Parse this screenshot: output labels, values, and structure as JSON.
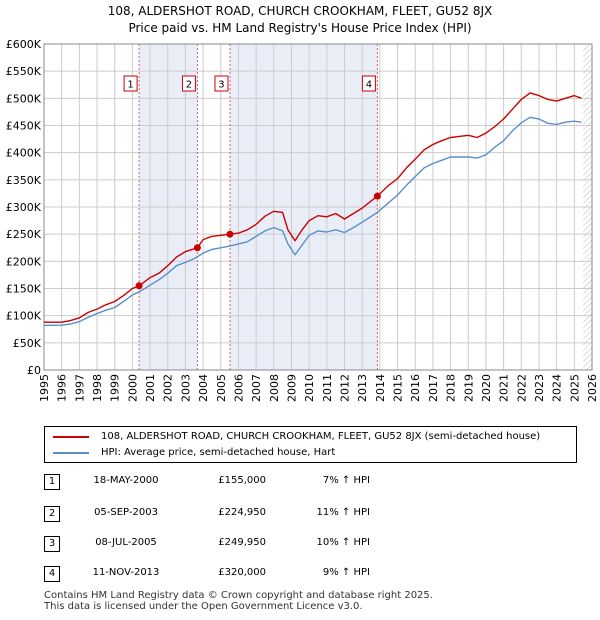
{
  "chart_data": {
    "type": "line",
    "title": "108, ALDERSHOT ROAD, CHURCH CROOKHAM, FLEET, GU52 8JX",
    "subtitle": "Price paid vs. HM Land Registry's House Price Index (HPI)",
    "xlim": [
      1995,
      2026
    ],
    "ylim": [
      0,
      600000
    ],
    "x_ticks": [
      "1995",
      "1996",
      "1997",
      "1998",
      "1999",
      "2000",
      "2001",
      "2002",
      "2003",
      "2004",
      "2005",
      "2006",
      "2007",
      "2008",
      "2009",
      "2010",
      "2011",
      "2012",
      "2013",
      "2014",
      "2015",
      "2016",
      "2017",
      "2018",
      "2019",
      "2020",
      "2021",
      "2022",
      "2023",
      "2024",
      "2025",
      "2026"
    ],
    "y_ticks": [
      {
        "label": "£0",
        "value": 0
      },
      {
        "label": "£50K",
        "value": 50000
      },
      {
        "label": "£100K",
        "value": 100000
      },
      {
        "label": "£150K",
        "value": 150000
      },
      {
        "label": "£200K",
        "value": 200000
      },
      {
        "label": "£250K",
        "value": 250000
      },
      {
        "label": "£300K",
        "value": 300000
      },
      {
        "label": "£350K",
        "value": 350000
      },
      {
        "label": "£400K",
        "value": 400000
      },
      {
        "label": "£450K",
        "value": 450000
      },
      {
        "label": "£500K",
        "value": 500000
      },
      {
        "label": "£550K",
        "value": 550000
      },
      {
        "label": "£600K",
        "value": 600000
      }
    ],
    "grid": true,
    "series": [
      {
        "name": "108, ALDERSHOT ROAD, CHURCH CROOKHAM, FLEET, GU52 8JX (semi-detached house)",
        "color": "#cc0000",
        "points": [
          [
            1995.0,
            88000
          ],
          [
            1996.0,
            88000
          ],
          [
            1996.5,
            91000
          ],
          [
            1997.0,
            96000
          ],
          [
            1997.5,
            106000
          ],
          [
            1998.0,
            112000
          ],
          [
            1998.5,
            120000
          ],
          [
            1999.0,
            126000
          ],
          [
            1999.5,
            137000
          ],
          [
            2000.0,
            150000
          ],
          [
            2000.38,
            155000
          ],
          [
            2001.0,
            170000
          ],
          [
            2001.5,
            178000
          ],
          [
            2002.0,
            192000
          ],
          [
            2002.5,
            208000
          ],
          [
            2003.0,
            218000
          ],
          [
            2003.68,
            224950
          ],
          [
            2004.0,
            240000
          ],
          [
            2004.5,
            246000
          ],
          [
            2005.0,
            248000
          ],
          [
            2005.52,
            249950
          ],
          [
            2006.0,
            252000
          ],
          [
            2006.5,
            258000
          ],
          [
            2007.0,
            268000
          ],
          [
            2007.5,
            283000
          ],
          [
            2008.0,
            292000
          ],
          [
            2008.5,
            290000
          ],
          [
            2008.8,
            258000
          ],
          [
            2009.2,
            238000
          ],
          [
            2009.6,
            258000
          ],
          [
            2010.0,
            275000
          ],
          [
            2010.5,
            284000
          ],
          [
            2011.0,
            282000
          ],
          [
            2011.5,
            288000
          ],
          [
            2012.0,
            278000
          ],
          [
            2012.5,
            288000
          ],
          [
            2013.0,
            298000
          ],
          [
            2013.86,
            320000
          ],
          [
            2014.5,
            340000
          ],
          [
            2015.0,
            352000
          ],
          [
            2015.5,
            372000
          ],
          [
            2016.0,
            388000
          ],
          [
            2016.5,
            405000
          ],
          [
            2017.0,
            415000
          ],
          [
            2017.5,
            422000
          ],
          [
            2018.0,
            428000
          ],
          [
            2018.5,
            430000
          ],
          [
            2019.0,
            432000
          ],
          [
            2019.5,
            428000
          ],
          [
            2020.0,
            436000
          ],
          [
            2020.5,
            448000
          ],
          [
            2021.0,
            462000
          ],
          [
            2021.5,
            480000
          ],
          [
            2022.0,
            498000
          ],
          [
            2022.5,
            510000
          ],
          [
            2023.0,
            505000
          ],
          [
            2023.5,
            498000
          ],
          [
            2024.0,
            495000
          ],
          [
            2024.5,
            500000
          ],
          [
            2025.0,
            505000
          ],
          [
            2025.4,
            500000
          ]
        ]
      },
      {
        "name": "HPI: Average price, semi-detached house, Hart",
        "color": "#5b8fc9",
        "points": [
          [
            1995.0,
            82000
          ],
          [
            1996.0,
            82500
          ],
          [
            1996.5,
            84500
          ],
          [
            1997.0,
            89000
          ],
          [
            1997.5,
            97000
          ],
          [
            1998.0,
            104000
          ],
          [
            1998.5,
            110000
          ],
          [
            1999.0,
            115000
          ],
          [
            1999.5,
            126000
          ],
          [
            2000.0,
            138000
          ],
          [
            2000.5,
            146000
          ],
          [
            2001.0,
            156000
          ],
          [
            2001.5,
            166000
          ],
          [
            2002.0,
            178000
          ],
          [
            2002.5,
            192000
          ],
          [
            2003.0,
            198000
          ],
          [
            2003.5,
            205000
          ],
          [
            2004.0,
            215000
          ],
          [
            2004.5,
            222000
          ],
          [
            2005.0,
            225000
          ],
          [
            2005.5,
            228000
          ],
          [
            2006.0,
            232000
          ],
          [
            2006.5,
            236000
          ],
          [
            2007.0,
            246000
          ],
          [
            2007.5,
            256000
          ],
          [
            2008.0,
            262000
          ],
          [
            2008.5,
            256000
          ],
          [
            2008.8,
            232000
          ],
          [
            2009.2,
            212000
          ],
          [
            2009.6,
            230000
          ],
          [
            2010.0,
            248000
          ],
          [
            2010.5,
            256000
          ],
          [
            2011.0,
            254000
          ],
          [
            2011.5,
            258000
          ],
          [
            2012.0,
            253000
          ],
          [
            2012.5,
            262000
          ],
          [
            2013.0,
            272000
          ],
          [
            2013.86,
            290000
          ],
          [
            2014.5,
            308000
          ],
          [
            2015.0,
            322000
          ],
          [
            2015.5,
            340000
          ],
          [
            2016.0,
            356000
          ],
          [
            2016.5,
            372000
          ],
          [
            2017.0,
            380000
          ],
          [
            2017.5,
            386000
          ],
          [
            2018.0,
            392000
          ],
          [
            2018.5,
            392000
          ],
          [
            2019.0,
            392000
          ],
          [
            2019.5,
            390000
          ],
          [
            2020.0,
            396000
          ],
          [
            2020.5,
            410000
          ],
          [
            2021.0,
            422000
          ],
          [
            2021.5,
            440000
          ],
          [
            2022.0,
            455000
          ],
          [
            2022.5,
            465000
          ],
          [
            2023.0,
            462000
          ],
          [
            2023.5,
            454000
          ],
          [
            2024.0,
            452000
          ],
          [
            2024.5,
            456000
          ],
          [
            2025.0,
            458000
          ],
          [
            2025.4,
            456000
          ]
        ]
      }
    ],
    "sales": [
      {
        "label": "1",
        "date": "18-MAY-2000",
        "price": "£155,000",
        "hpi": "7% ↑ HPI",
        "x": 2000.38,
        "y": 155000
      },
      {
        "label": "2",
        "date": "05-SEP-2003",
        "price": "£224,950",
        "hpi": "11% ↑ HPI",
        "x": 2003.68,
        "y": 224950
      },
      {
        "label": "3",
        "date": "08-JUL-2005",
        "price": "£249,950",
        "hpi": "10% ↑ HPI",
        "x": 2005.52,
        "y": 249950
      },
      {
        "label": "4",
        "date": "11-NOV-2013",
        "price": "£320,000",
        "hpi": "9% ↑ HPI",
        "x": 2013.86,
        "y": 320000
      }
    ],
    "shade_bands": [
      [
        2000.38,
        2003.68
      ],
      [
        2005.52,
        2013.86
      ]
    ],
    "forecast_start": 2025.5,
    "colors": {
      "shade": "#e8edf8",
      "marker_line": "#e06060",
      "grid": "#cccccc"
    }
  },
  "legend": {
    "red_label": "108, ALDERSHOT ROAD, CHURCH CROOKHAM, FLEET, GU52 8JX (semi-detached house)",
    "blue_label": "HPI: Average price, semi-detached house, Hart"
  },
  "footer": {
    "line1": "Contains HM Land Registry data © Crown copyright and database right 2025.",
    "line2": "This data is licensed under the Open Government Licence v3.0."
  }
}
